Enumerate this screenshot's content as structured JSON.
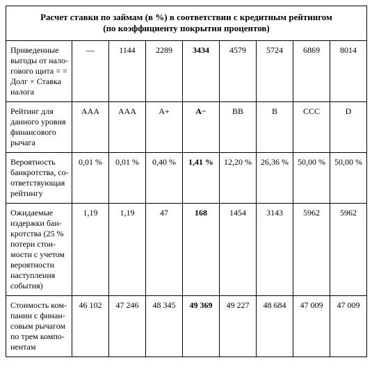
{
  "title_line1": "Расчет ставки по займам (в %) в соответствии с кредитным рейтингом",
  "title_line2": "(по коэффициенту покрытия процентов)",
  "bold_col_index": 3,
  "rows": [
    {
      "label": "Приведенные выгоды от нало­гового щита = = Долг × Ставка налога",
      "cells": [
        "—",
        "1144",
        "2289",
        "3434",
        "4579",
        "5724",
        "6869",
        "8014"
      ]
    },
    {
      "label": "Рейтинг для данного уровня финансового рычага",
      "cells": [
        "AAA",
        "AAA",
        "A+",
        "A−",
        "BB",
        "B",
        "CCC",
        "D"
      ]
    },
    {
      "label": "Вероятность банкротства, со­ответствующая рейтингу",
      "cells": [
        "0,01 %",
        "0,01 %",
        "0,40 %",
        "1,41 %",
        "12,20 %",
        "26,36 %",
        "50,00 %",
        "50,00 %"
      ]
    },
    {
      "label": "Ожидаемые издержки бан­кротства (25 % потери стои­мости с учетом вероятности наступления события)",
      "cells": [
        "1,19",
        "1,19",
        "47",
        "168",
        "1454",
        "3143",
        "5962",
        "5962"
      ]
    },
    {
      "label": "Стоимость ком­пании с финан­совым рычагом по трем компо­нентам",
      "cells": [
        "46 102",
        "47 246",
        "48 345",
        "49 369",
        "49 227",
        "48 684",
        "47 009",
        "47 009"
      ]
    }
  ]
}
